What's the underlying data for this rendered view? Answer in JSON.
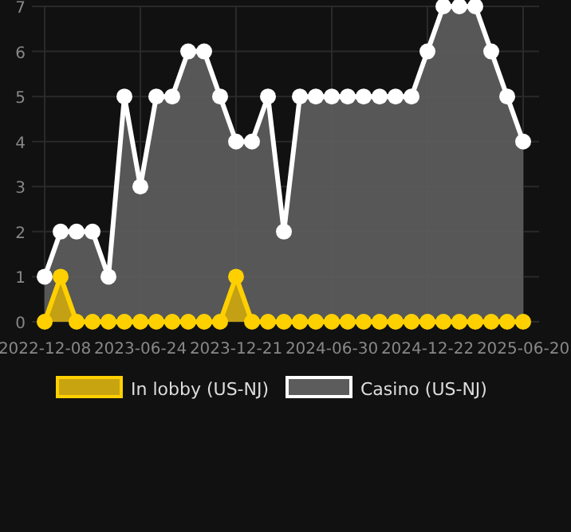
{
  "chart_data": {
    "type": "area",
    "categories": [
      "2022-12-08",
      null,
      null,
      null,
      null,
      null,
      "2023-06-24",
      null,
      null,
      null,
      null,
      null,
      "2023-12-21",
      null,
      null,
      null,
      null,
      null,
      "2024-06-30",
      null,
      null,
      null,
      null,
      null,
      "2024-12-22",
      null,
      null,
      null,
      null,
      null,
      "2025-06-20"
    ],
    "series": [
      {
        "name": "In lobby (US-NJ)",
        "color": "#ffd000",
        "values": [
          0,
          1,
          0,
          0,
          0,
          0,
          0,
          0,
          0,
          0,
          0,
          0,
          1,
          0,
          0,
          0,
          0,
          0,
          0,
          0,
          0,
          0,
          0,
          0,
          0,
          0,
          0,
          0,
          0,
          0,
          0
        ]
      },
      {
        "name": "Casino (US-NJ)",
        "color": "#ffffff",
        "values": [
          1,
          2,
          2,
          2,
          1,
          5,
          3,
          5,
          5,
          6,
          6,
          5,
          4,
          4,
          5,
          2,
          5,
          5,
          5,
          5,
          5,
          5,
          5,
          5,
          6,
          7,
          7,
          7,
          6,
          5,
          4
        ]
      }
    ],
    "ylim": [
      0,
      7
    ],
    "yticks": [
      0,
      1,
      2,
      3,
      4,
      5,
      6,
      7
    ],
    "grid": true,
    "legend": "bottom",
    "marker": "circle"
  }
}
